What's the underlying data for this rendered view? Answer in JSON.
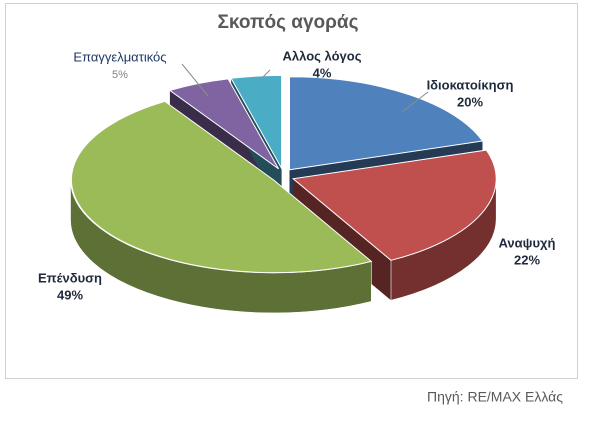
{
  "chart_data": {
    "type": "pie3d",
    "title": "Σκοπός αγοράς",
    "categories": [
      "Ιδιοκατοίκηση",
      "Αναψυχή",
      "Επένδυση",
      "Επαγγελματικός",
      "Αλλος λόγος"
    ],
    "values": [
      20,
      22,
      49,
      5,
      4
    ],
    "value_labels": [
      "20%",
      "22%",
      "49%",
      "5%",
      "4%"
    ],
    "colors": [
      "#4f81bd",
      "#c0504d",
      "#9bbb59",
      "#8064a2",
      "#4bacc6"
    ]
  },
  "source": "Πηγή: RE/MAX Ελλάς"
}
